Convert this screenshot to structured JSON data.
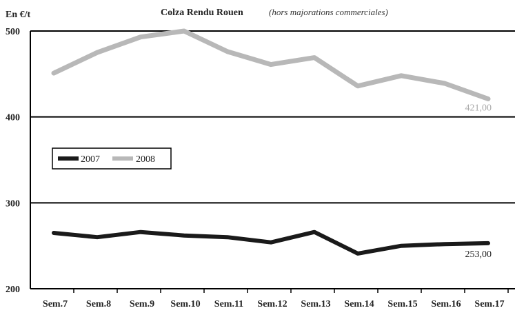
{
  "chart_data": {
    "type": "line",
    "title": "Colza Rendu Rouen",
    "subtitle": "(hors majorations commerciales)",
    "ylabel": "En €/t",
    "xlabel": "",
    "categories": [
      "Sem.7",
      "Sem.8",
      "Sem.9",
      "Sem.10",
      "Sem.11",
      "Sem.12",
      "Sem.13",
      "Sem.14",
      "Sem.15",
      "Sem.16",
      "Sem.17"
    ],
    "ylim": [
      200,
      500
    ],
    "yticks": [
      "200",
      "300",
      "400",
      "500"
    ],
    "grid": "horizontal",
    "legend_placement": "left",
    "series": [
      {
        "name": "2007",
        "color": "#1a1a1a",
        "x": [
          0.0,
          1.0,
          2.0,
          3.0,
          4.0,
          5.0,
          6.0,
          7.0,
          8.0,
          9.0,
          10.0
        ],
        "values": [
          265,
          260,
          266,
          262,
          260,
          254,
          266,
          241,
          250,
          252,
          253
        ],
        "end_label": "253,00"
      },
      {
        "name": "2008",
        "color": "#b8b8b8",
        "x": [
          0.0,
          1.0,
          2.0,
          3.0,
          4.0,
          5.0,
          6.0,
          7.0,
          8.0,
          9.0,
          10.0
        ],
        "values": [
          451,
          475,
          493,
          500,
          476,
          461,
          469,
          436,
          448,
          439,
          421
        ],
        "end_label": "421,00"
      }
    ]
  }
}
